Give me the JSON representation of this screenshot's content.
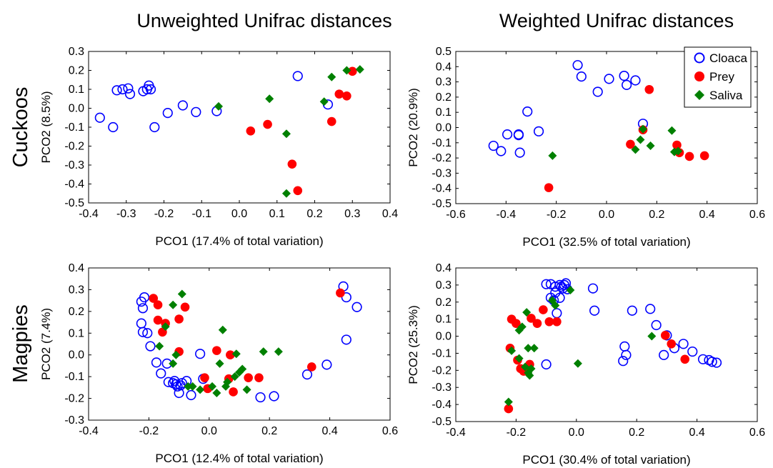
{
  "figure": {
    "col_titles": [
      "Unweighted Unifrac distances",
      "Weighted Unifrac distances"
    ],
    "row_labels": [
      "Cuckoos",
      "Magpies"
    ],
    "legend": [
      {
        "label": "Cloaca",
        "color": "#0000ff",
        "marker": "open-circle"
      },
      {
        "label": "Prey",
        "color": "#ff0000",
        "marker": "filled-circle"
      },
      {
        "label": "Saliva",
        "color": "#008000",
        "marker": "diamond"
      }
    ]
  },
  "chart_data": [
    {
      "type": "scatter",
      "xlabel": "PCO1 (17.4% of total variation)",
      "ylabel": "PCO2 (8.5%)",
      "xlim": [
        -0.4,
        0.4
      ],
      "ylim": [
        -0.5,
        0.3
      ],
      "xticks": [
        "-0.4",
        "-0.3",
        "-0.2",
        "-0.1",
        "0.0",
        "0.1",
        "0.2",
        "0.3",
        "0.4"
      ],
      "yticks": [
        "0.3",
        "0.2",
        "0.1",
        "0.0",
        "-0.1",
        "-0.2",
        "-0.3",
        "-0.4",
        "-0.5"
      ],
      "series": [
        {
          "name": "Cloaca",
          "points": [
            [
              -0.37,
              -0.05
            ],
            [
              -0.335,
              -0.1
            ],
            [
              -0.325,
              0.095
            ],
            [
              -0.31,
              0.1
            ],
            [
              -0.295,
              0.105
            ],
            [
              -0.29,
              0.075
            ],
            [
              -0.255,
              0.09
            ],
            [
              -0.245,
              0.1
            ],
            [
              -0.24,
              0.12
            ],
            [
              -0.235,
              0.1
            ],
            [
              -0.225,
              -0.1
            ],
            [
              -0.19,
              -0.025
            ],
            [
              -0.15,
              0.015
            ],
            [
              -0.115,
              -0.02
            ],
            [
              -0.06,
              -0.015
            ],
            [
              0.155,
              0.17
            ],
            [
              0.235,
              0.02
            ]
          ]
        },
        {
          "name": "Prey",
          "points": [
            [
              0.03,
              -0.12
            ],
            [
              0.075,
              -0.085
            ],
            [
              0.14,
              -0.295
            ],
            [
              0.155,
              -0.435
            ],
            [
              0.245,
              -0.07
            ],
            [
              0.265,
              0.075
            ],
            [
              0.285,
              0.065
            ],
            [
              0.3,
              0.195
            ]
          ]
        },
        {
          "name": "Saliva",
          "points": [
            [
              -0.055,
              0.01
            ],
            [
              0.08,
              0.05
            ],
            [
              0.125,
              -0.135
            ],
            [
              0.125,
              -0.45
            ],
            [
              0.225,
              0.035
            ],
            [
              0.245,
              0.165
            ],
            [
              0.285,
              0.2
            ],
            [
              0.32,
              0.205
            ]
          ]
        }
      ]
    },
    {
      "type": "scatter",
      "xlabel": "PCO1 (32.5% of total variation)",
      "ylabel": "PCO2 (20.9%)",
      "xlim": [
        -0.6,
        0.6
      ],
      "ylim": [
        -0.5,
        0.5
      ],
      "xticks": [
        "-0.6",
        "-0.4",
        "-0.2",
        "0.0",
        "0.2",
        "0.4",
        "0.6"
      ],
      "yticks": [
        "0.5",
        "0.4",
        "0.3",
        "0.2",
        "0.1",
        "0.0",
        "-0.1",
        "-0.2",
        "-0.3",
        "-0.4",
        "-0.5"
      ],
      "series": [
        {
          "name": "Cloaca",
          "points": [
            [
              -0.45,
              -0.12
            ],
            [
              -0.42,
              -0.155
            ],
            [
              -0.395,
              -0.045
            ],
            [
              -0.35,
              -0.05
            ],
            [
              -0.35,
              -0.045
            ],
            [
              -0.345,
              -0.165
            ],
            [
              -0.315,
              0.105
            ],
            [
              -0.27,
              -0.025
            ],
            [
              -0.115,
              0.41
            ],
            [
              -0.1,
              0.335
            ],
            [
              -0.035,
              0.235
            ],
            [
              0.01,
              0.32
            ],
            [
              0.07,
              0.34
            ],
            [
              0.08,
              0.28
            ],
            [
              0.115,
              0.31
            ],
            [
              0.145,
              0.025
            ]
          ]
        },
        {
          "name": "Prey",
          "points": [
            [
              -0.23,
              -0.395
            ],
            [
              0.095,
              -0.11
            ],
            [
              0.145,
              -0.015
            ],
            [
              0.17,
              0.25
            ],
            [
              0.28,
              -0.115
            ],
            [
              0.29,
              -0.165
            ],
            [
              0.33,
              -0.19
            ],
            [
              0.39,
              -0.185
            ]
          ]
        },
        {
          "name": "Saliva",
          "points": [
            [
              -0.215,
              -0.185
            ],
            [
              0.115,
              -0.145
            ],
            [
              0.135,
              -0.08
            ],
            [
              0.145,
              -0.01
            ],
            [
              0.175,
              -0.12
            ],
            [
              0.26,
              -0.02
            ],
            [
              0.27,
              -0.16
            ],
            [
              0.285,
              -0.155
            ]
          ]
        }
      ]
    },
    {
      "type": "scatter",
      "xlabel": "PCO1 (12.4% of total variation)",
      "ylabel": "PCO2 (7.4%)",
      "xlim": [
        -0.4,
        0.6
      ],
      "ylim": [
        -0.3,
        0.4
      ],
      "xticks": [
        "-0.4",
        "-0.2",
        "0.0",
        "0.2",
        "0.4",
        "0.6"
      ],
      "yticks": [
        "0.4",
        "0.3",
        "0.2",
        "0.1",
        "0.0",
        "-0.1",
        "-0.2",
        "-0.3"
      ],
      "series": [
        {
          "name": "Cloaca",
          "points": [
            [
              -0.225,
              0.245
            ],
            [
              -0.215,
              0.265
            ],
            [
              -0.22,
              0.215
            ],
            [
              -0.225,
              0.145
            ],
            [
              -0.22,
              0.105
            ],
            [
              -0.205,
              0.1
            ],
            [
              -0.195,
              0.04
            ],
            [
              -0.175,
              -0.035
            ],
            [
              -0.16,
              -0.085
            ],
            [
              -0.14,
              -0.04
            ],
            [
              -0.135,
              -0.125
            ],
            [
              -0.12,
              -0.13
            ],
            [
              -0.115,
              -0.12
            ],
            [
              -0.11,
              -0.135
            ],
            [
              -0.105,
              -0.145
            ],
            [
              -0.1,
              -0.175
            ],
            [
              -0.095,
              -0.14
            ],
            [
              -0.09,
              -0.13
            ],
            [
              -0.075,
              -0.12
            ],
            [
              -0.06,
              -0.185
            ],
            [
              -0.03,
              0.005
            ],
            [
              -0.02,
              -0.11
            ],
            [
              0.17,
              -0.195
            ],
            [
              0.215,
              -0.19
            ],
            [
              0.325,
              -0.09
            ],
            [
              0.39,
              -0.045
            ],
            [
              0.445,
              0.315
            ],
            [
              0.455,
              0.265
            ],
            [
              0.455,
              0.07
            ],
            [
              0.49,
              0.22
            ]
          ]
        },
        {
          "name": "Prey",
          "points": [
            [
              -0.185,
              0.26
            ],
            [
              -0.17,
              0.23
            ],
            [
              -0.17,
              0.16
            ],
            [
              -0.155,
              0.105
            ],
            [
              -0.145,
              0.145
            ],
            [
              -0.1,
              0.165
            ],
            [
              -0.1,
              0.015
            ],
            [
              -0.08,
              0.22
            ],
            [
              -0.015,
              -0.105
            ],
            [
              -0.005,
              -0.155
            ],
            [
              0.025,
              0.02
            ],
            [
              0.065,
              -0.11
            ],
            [
              0.07,
              0.0
            ],
            [
              0.08,
              -0.17
            ],
            [
              0.13,
              -0.105
            ],
            [
              0.165,
              -0.105
            ],
            [
              0.34,
              -0.055
            ],
            [
              0.435,
              0.285
            ]
          ]
        },
        {
          "name": "Saliva",
          "points": [
            [
              -0.165,
              0.04
            ],
            [
              -0.145,
              0.13
            ],
            [
              -0.12,
              0.23
            ],
            [
              -0.12,
              -0.04
            ],
            [
              -0.11,
              0.0
            ],
            [
              -0.09,
              0.28
            ],
            [
              -0.07,
              -0.145
            ],
            [
              -0.055,
              -0.145
            ],
            [
              -0.03,
              -0.16
            ],
            [
              0.01,
              -0.145
            ],
            [
              0.025,
              -0.175
            ],
            [
              0.035,
              -0.04
            ],
            [
              0.045,
              0.115
            ],
            [
              0.055,
              -0.145
            ],
            [
              0.06,
              -0.125
            ],
            [
              0.085,
              -0.1
            ],
            [
              0.09,
              0.005
            ],
            [
              0.1,
              -0.08
            ],
            [
              0.11,
              -0.065
            ],
            [
              0.125,
              -0.16
            ],
            [
              0.18,
              0.015
            ],
            [
              0.23,
              0.015
            ]
          ]
        }
      ]
    },
    {
      "type": "scatter",
      "xlabel": "PCO1 (30.4% of total variation)",
      "ylabel": "PCO2 (25.3%)",
      "xlim": [
        -0.4,
        0.6
      ],
      "ylim": [
        -0.5,
        0.4
      ],
      "xticks": [
        "-0.4",
        "-0.2",
        "0.0",
        "0.2",
        "0.4",
        "0.6"
      ],
      "yticks": [
        "0.4",
        "0.3",
        "0.2",
        "0.1",
        "0.0",
        "-0.1",
        "-0.2",
        "-0.3",
        "-0.4",
        "-0.5"
      ],
      "series": [
        {
          "name": "Cloaca",
          "points": [
            [
              -0.1,
              0.305
            ],
            [
              -0.085,
              0.305
            ],
            [
              -0.085,
              0.225
            ],
            [
              -0.075,
              0.21
            ],
            [
              -0.07,
              0.29
            ],
            [
              -0.07,
              0.255
            ],
            [
              -0.065,
              0.135
            ],
            [
              -0.055,
              0.3
            ],
            [
              -0.055,
              0.225
            ],
            [
              -0.05,
              0.29
            ],
            [
              -0.045,
              0.28
            ],
            [
              -0.04,
              0.3
            ],
            [
              -0.035,
              0.31
            ],
            [
              -0.03,
              0.275
            ],
            [
              -0.1,
              -0.165
            ],
            [
              0.055,
              0.28
            ],
            [
              0.06,
              0.15
            ],
            [
              0.155,
              -0.145
            ],
            [
              0.16,
              -0.06
            ],
            [
              0.165,
              -0.11
            ],
            [
              0.185,
              0.15
            ],
            [
              0.245,
              0.16
            ],
            [
              0.265,
              0.065
            ],
            [
              0.29,
              -0.11
            ],
            [
              0.3,
              0.005
            ],
            [
              0.325,
              -0.07
            ],
            [
              0.355,
              -0.045
            ],
            [
              0.385,
              -0.09
            ],
            [
              0.42,
              -0.135
            ],
            [
              0.44,
              -0.14
            ],
            [
              0.45,
              -0.15
            ],
            [
              0.465,
              -0.155
            ]
          ]
        },
        {
          "name": "Prey",
          "points": [
            [
              -0.225,
              -0.425
            ],
            [
              -0.215,
              0.1
            ],
            [
              -0.22,
              -0.07
            ],
            [
              -0.2,
              0.075
            ],
            [
              -0.195,
              -0.14
            ],
            [
              -0.185,
              -0.19
            ],
            [
              -0.175,
              -0.205
            ],
            [
              -0.165,
              -0.2
            ],
            [
              -0.155,
              -0.165
            ],
            [
              -0.15,
              0.105
            ],
            [
              -0.13,
              0.075
            ],
            [
              -0.11,
              0.155
            ],
            [
              -0.09,
              0.085
            ],
            [
              -0.065,
              0.085
            ],
            [
              0.295,
              0.005
            ],
            [
              0.315,
              -0.045
            ],
            [
              0.36,
              -0.135
            ]
          ]
        },
        {
          "name": "Saliva",
          "points": [
            [
              -0.225,
              -0.385
            ],
            [
              -0.215,
              -0.085
            ],
            [
              -0.19,
              -0.13
            ],
            [
              -0.19,
              0.035
            ],
            [
              -0.18,
              0.055
            ],
            [
              -0.17,
              -0.18
            ],
            [
              -0.165,
              0.14
            ],
            [
              -0.16,
              -0.07
            ],
            [
              -0.16,
              -0.215
            ],
            [
              -0.155,
              -0.23
            ],
            [
              -0.15,
              -0.19
            ],
            [
              -0.14,
              -0.07
            ],
            [
              -0.08,
              0.21
            ],
            [
              -0.07,
              0.18
            ],
            [
              -0.02,
              0.27
            ],
            [
              0.005,
              -0.16
            ],
            [
              0.25,
              0.0
            ]
          ]
        }
      ]
    }
  ]
}
